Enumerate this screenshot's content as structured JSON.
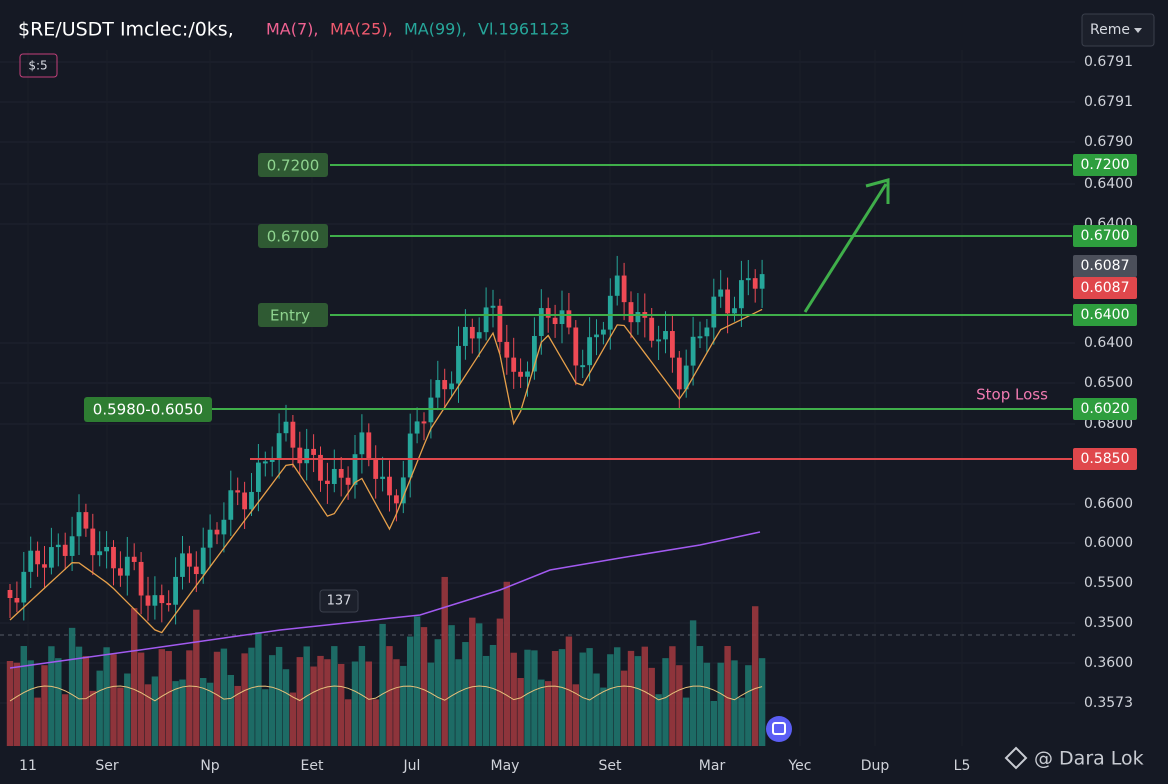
{
  "header": {
    "symbol": "$RE/USDT Imclec:/0ks,",
    "ma7": "MA(7),",
    "ma25": "MA(25),",
    "ma99": "MA(99),",
    "vol": "Vl.1961123"
  },
  "badge": "$:5",
  "dropdown": "Reme",
  "price_axis": [
    "0.6791",
    "0.6791",
    "0.6790",
    "0.6400",
    "0.6400",
    "0.6400",
    "0.6500",
    "0.6800",
    "0.6600",
    "0.6000",
    "0.5500",
    "0.3500",
    "0.3600",
    "0.3573"
  ],
  "levels": {
    "target_2": {
      "label": "0.7200",
      "tag": "0.7200"
    },
    "target_1": {
      "label": "0.6700",
      "tag": "0.6700"
    },
    "current": {
      "tag": "0.6087",
      "tag_2": "0.6087"
    },
    "entry": {
      "label": "Entry",
      "tag": "0.6400"
    },
    "zone": {
      "label": "0.5980-0.6050",
      "tag": "0.6020"
    },
    "stop": {
      "label": "Stop Loss",
      "tag": "0.5850"
    }
  },
  "volume_tag": "137",
  "x_axis": [
    "11",
    "Ser",
    "Np",
    "Eet",
    "Jul",
    "May",
    "Set",
    "Mar",
    "Yec",
    "Dup",
    "L5"
  ],
  "watermark": "@ Dara Lok"
}
